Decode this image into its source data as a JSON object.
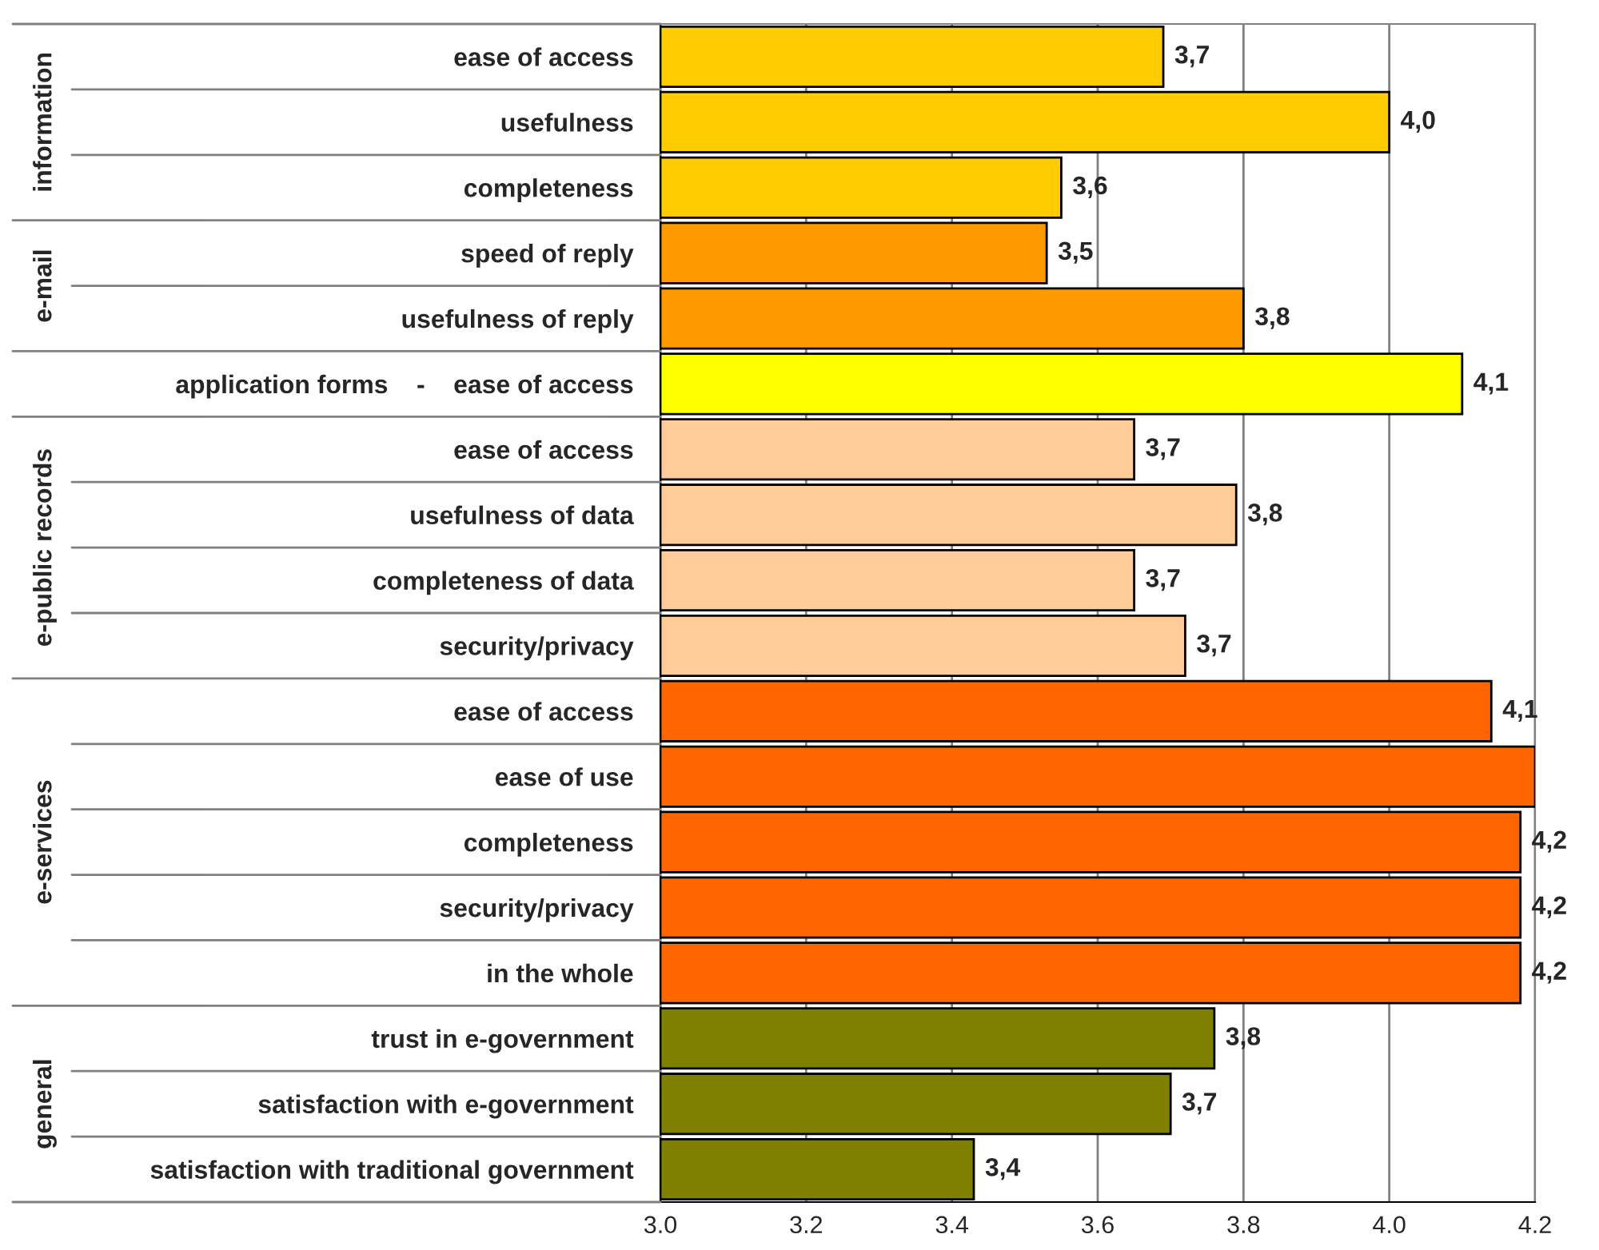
{
  "chart_data": {
    "type": "bar",
    "orientation": "horizontal",
    "categories": [
      "ease of access",
      "usefulness",
      "completeness",
      "speed of reply",
      "usefulness of reply",
      "application forms    -    ease of access",
      "ease of access",
      "usefulness of data",
      "completeness of data",
      "security/privacy",
      "ease of access",
      "ease of use",
      "completeness",
      "security/privacy",
      "in the whole",
      "trust in e-government",
      "satisfaction with e-government",
      "satisfaction with traditional government"
    ],
    "values": [
      3.69,
      4.0,
      3.55,
      3.53,
      3.8,
      4.1,
      3.65,
      3.79,
      3.65,
      3.72,
      4.14,
      4.2,
      4.18,
      4.18,
      4.18,
      3.76,
      3.7,
      3.43
    ],
    "value_labels": [
      "3,7",
      "4,0",
      "3,6",
      "3,5",
      "3,8",
      "4,1",
      "3,7",
      "3,8",
      "3,7",
      "3,7",
      "4,1",
      null,
      "4,2",
      "4,2",
      "4,2",
      "3,8",
      "3,7",
      "3,4"
    ],
    "colors": [
      "#ffcc00",
      "#ffcc00",
      "#ffcc00",
      "#ff9900",
      "#ff9900",
      "#ffff00",
      "#ffcc99",
      "#ffcc99",
      "#ffcc99",
      "#ffcc99",
      "#ff6600",
      "#ff6600",
      "#ff6600",
      "#ff6600",
      "#ff6600",
      "#808000",
      "#808000",
      "#808000"
    ],
    "xlim": [
      3.0,
      4.2
    ],
    "xticks": [
      {
        "value": 3.0,
        "label": "3.0"
      },
      {
        "value": 3.2,
        "label": "3.2"
      },
      {
        "value": 3.4,
        "label": "3.4"
      },
      {
        "value": 3.6,
        "label": "3.6"
      },
      {
        "value": 3.8,
        "label": "3.8"
      },
      {
        "value": 4.0,
        "label": "4.0"
      },
      {
        "value": 4.2,
        "label": "4.2"
      }
    ],
    "grid": "x",
    "annotations": [
      "information",
      "e-mail",
      "e-public records",
      "e-services",
      "general"
    ]
  }
}
